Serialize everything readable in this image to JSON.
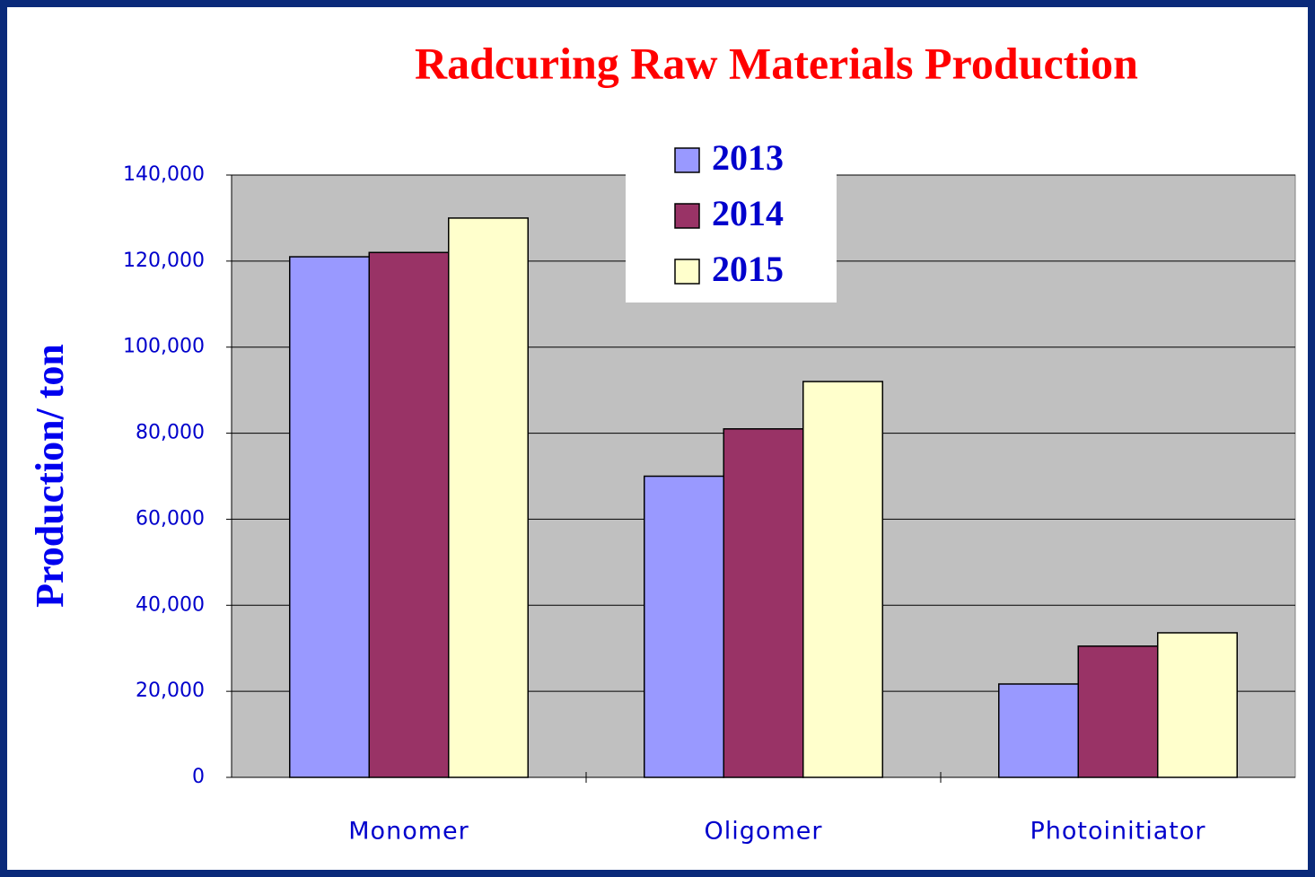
{
  "chart_data": {
    "type": "bar",
    "title": "Radcuring Raw Materials Production",
    "y_label": "Production/ ton",
    "categories": [
      "Monomer",
      "Oligomer",
      "Photoinitiator"
    ],
    "series": [
      {
        "name": "2013",
        "color": "#9999ff",
        "values": [
          121000,
          70000,
          21700
        ]
      },
      {
        "name": "2014",
        "color": "#993366",
        "values": [
          122000,
          81000,
          30500
        ]
      },
      {
        "name": "2015",
        "color": "#ffffcc",
        "values": [
          130000,
          92000,
          33600
        ]
      }
    ],
    "ylim": [
      0,
      140000
    ],
    "yticks": [
      0,
      {
        "value": 20000,
        "label": "20,000"
      },
      {
        "value": 40000,
        "label": "40,000"
      },
      {
        "value": 60000,
        "label": "60,000"
      },
      {
        "value": 80000,
        "label": "80,000"
      },
      {
        "value": 100000,
        "label": "100,000"
      },
      {
        "value": 120000,
        "label": "120,000"
      },
      {
        "value": 140000,
        "label": "140,000"
      }
    ],
    "grid": true,
    "legend": "top"
  }
}
